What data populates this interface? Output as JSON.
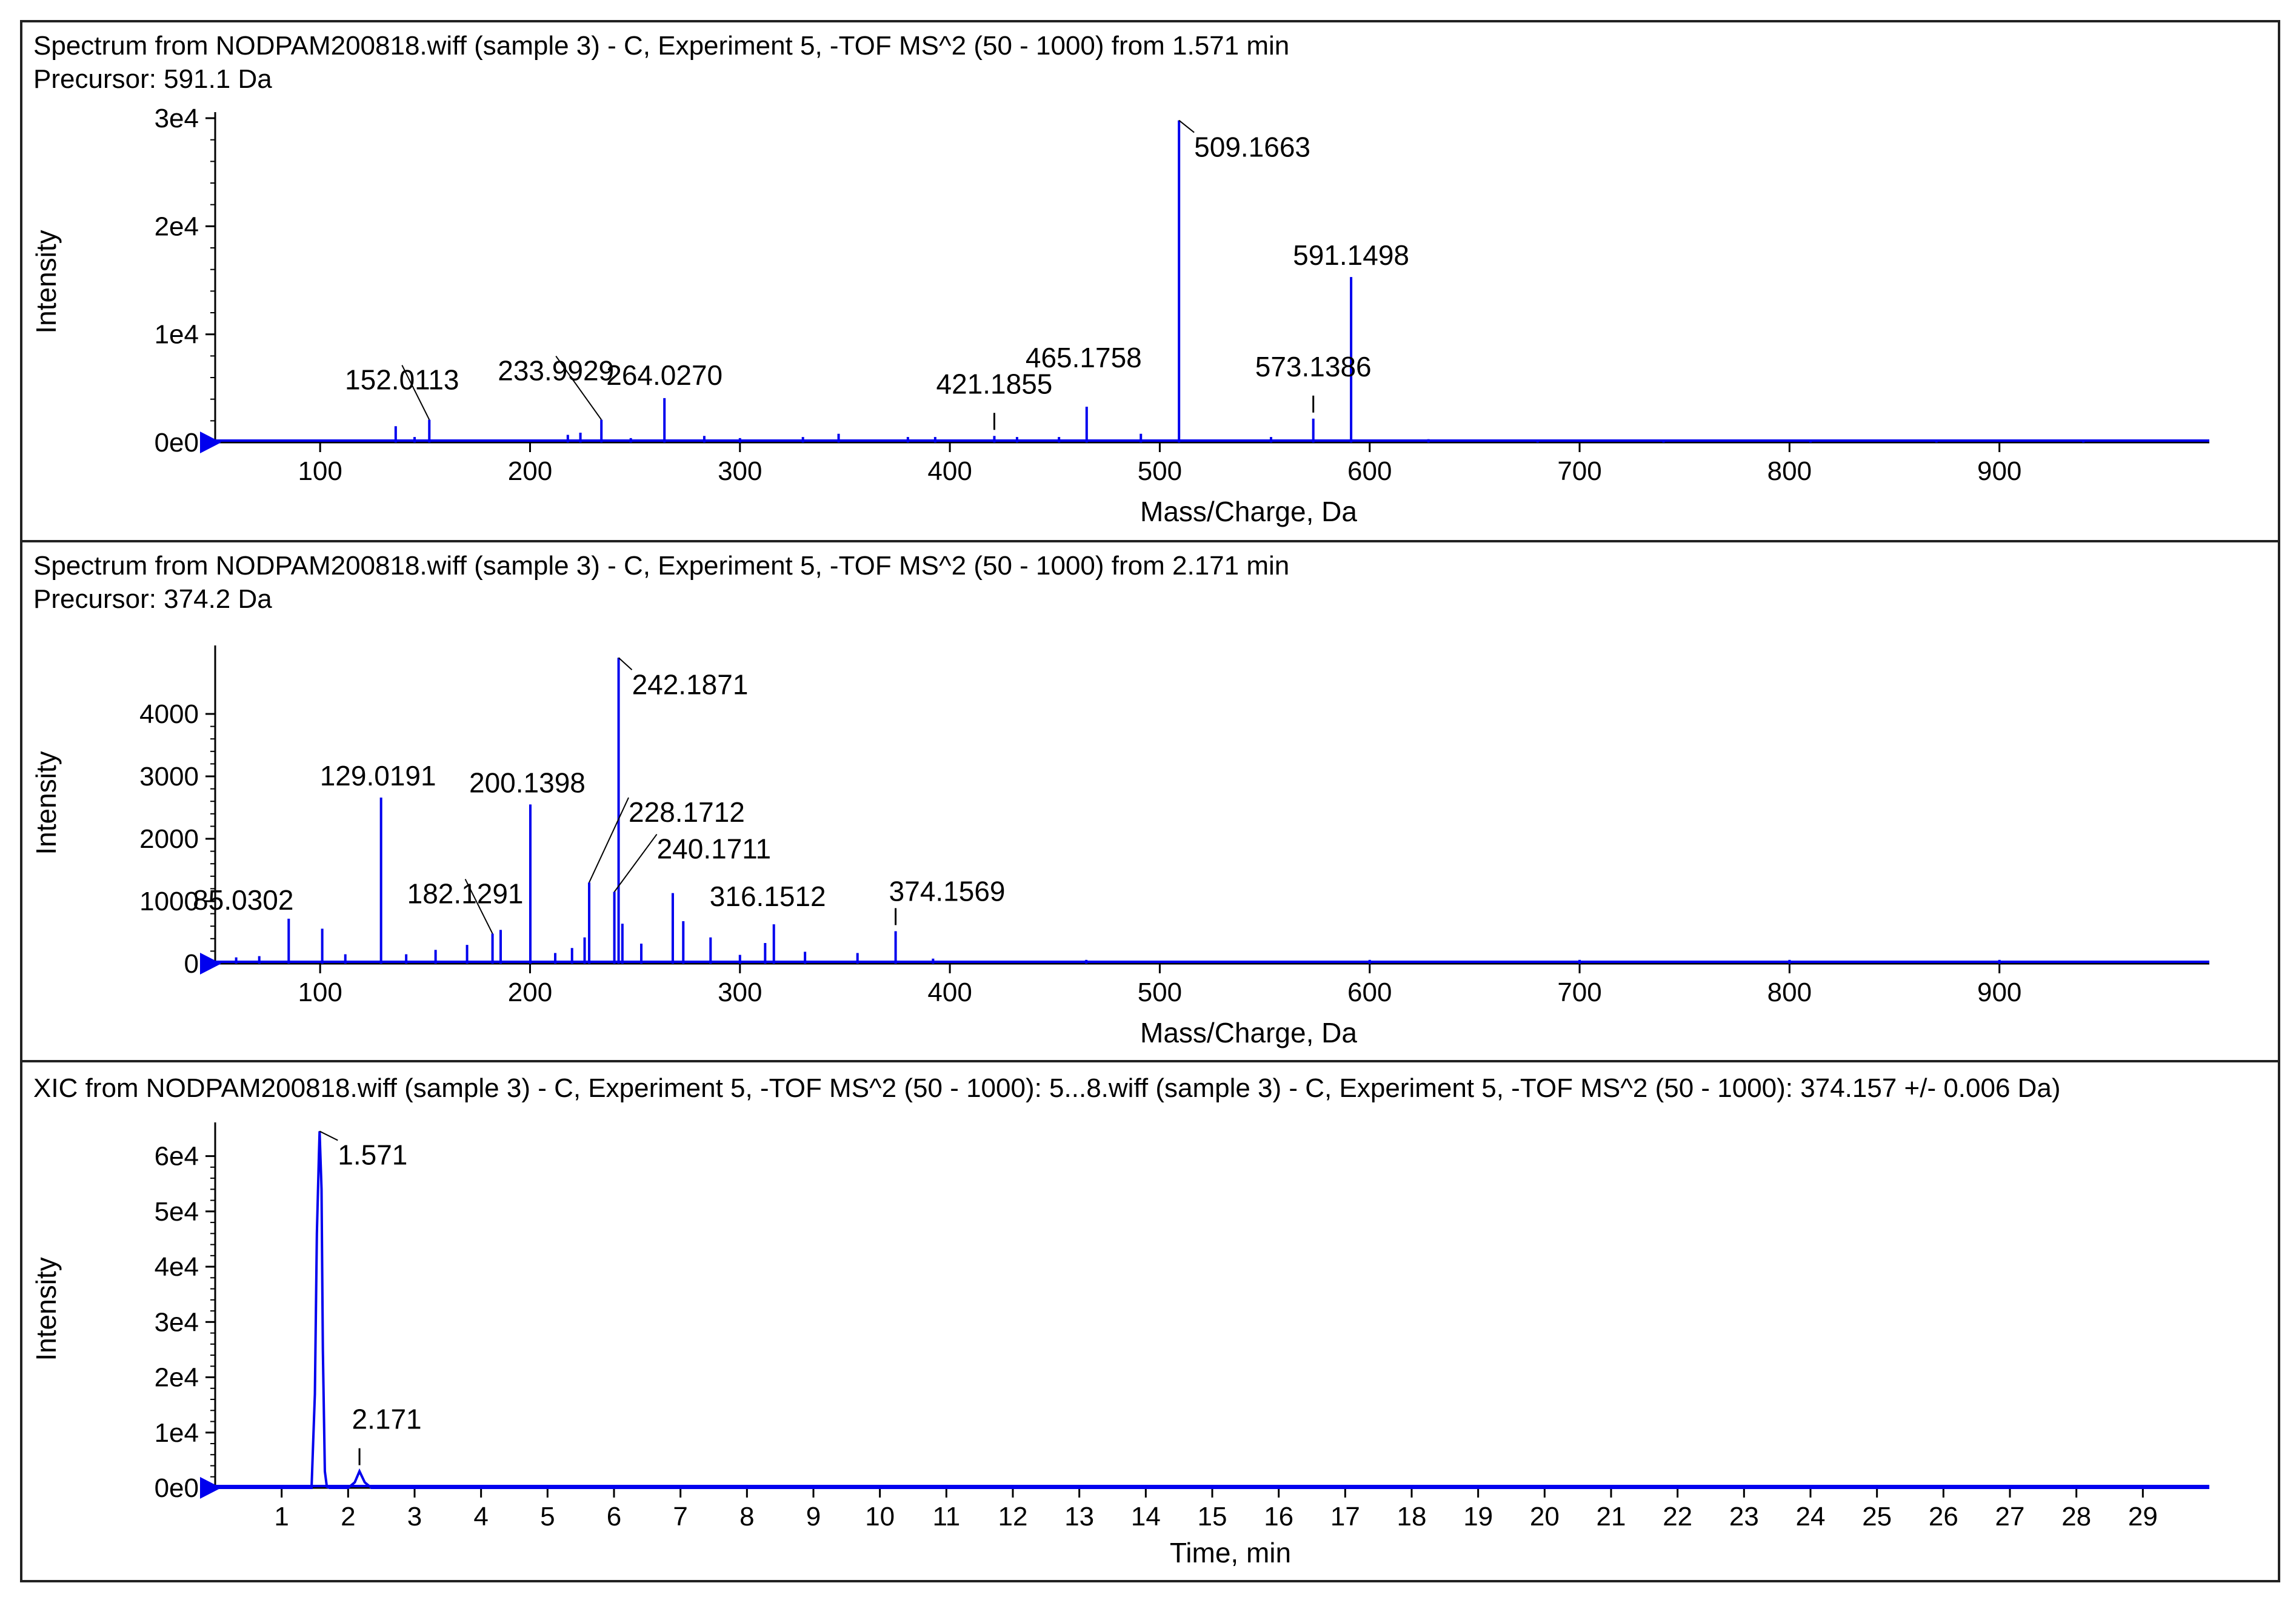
{
  "chart_data": [
    {
      "type": "line",
      "subtype": "mass-spectrum-stick",
      "title": "Spectrum from NODPAM200818.wiff (sample 3) - C, Experiment 5, -TOF MS^2 (50 - 1000) from 1.571 min",
      "subtitle": "Precursor: 591.1 Da",
      "xlabel": "Mass/Charge, Da",
      "ylabel": "Intensity",
      "xlim": [
        50,
        1000
      ],
      "ylim": [
        0,
        30000
      ],
      "x_ticks": [
        100,
        200,
        300,
        400,
        500,
        600,
        700,
        800,
        900
      ],
      "y_ticks": [
        {
          "value": 0,
          "label": "0e0"
        },
        {
          "value": 10000,
          "label": "1e4"
        },
        {
          "value": 20000,
          "label": "2e4"
        },
        {
          "value": 30000,
          "label": "3e4"
        }
      ],
      "peaks": [
        {
          "x": 136,
          "y": 1500
        },
        {
          "x": 152.0113,
          "y": 2100
        },
        {
          "x": 145,
          "y": 500
        },
        {
          "x": 218,
          "y": 700
        },
        {
          "x": 224,
          "y": 900
        },
        {
          "x": 233.9929,
          "y": 2100
        },
        {
          "x": 248,
          "y": 400
        },
        {
          "x": 264.027,
          "y": 4100
        },
        {
          "x": 283,
          "y": 600
        },
        {
          "x": 300,
          "y": 400
        },
        {
          "x": 330,
          "y": 500
        },
        {
          "x": 347,
          "y": 800
        },
        {
          "x": 380,
          "y": 500
        },
        {
          "x": 393,
          "y": 500
        },
        {
          "x": 421.1855,
          "y": 600
        },
        {
          "x": 432,
          "y": 500
        },
        {
          "x": 452,
          "y": 500
        },
        {
          "x": 465.1758,
          "y": 3300
        },
        {
          "x": 491,
          "y": 800
        },
        {
          "x": 509.1663,
          "y": 29800
        },
        {
          "x": 553,
          "y": 500
        },
        {
          "x": 573.1386,
          "y": 2200
        },
        {
          "x": 591.1498,
          "y": 15300
        },
        {
          "x": 628,
          "y": 300
        },
        {
          "x": 680,
          "y": 200
        },
        {
          "x": 740,
          "y": 200
        },
        {
          "x": 810,
          "y": 200
        },
        {
          "x": 870,
          "y": 200
        },
        {
          "x": 940,
          "y": 200
        }
      ],
      "annotations": [
        {
          "x": 509.1663,
          "label": "509.1663"
        },
        {
          "x": 591.1498,
          "label": "591.1498"
        },
        {
          "x": 233.9929,
          "label": "233.9929"
        },
        {
          "x": 264.027,
          "label": "264.0270"
        },
        {
          "x": 152.0113,
          "label": "152.0113"
        },
        {
          "x": 421.1855,
          "label": "421.1855"
        },
        {
          "x": 465.1758,
          "label": "465.1758"
        },
        {
          "x": 573.1386,
          "label": "573.1386"
        }
      ]
    },
    {
      "type": "line",
      "subtype": "mass-spectrum-stick",
      "title": "Spectrum from NODPAM200818.wiff (sample 3) - C, Experiment 5, -TOF MS^2 (50 - 1000) from 2.171 min",
      "subtitle": "Precursor: 374.2 Da",
      "xlabel": "Mass/Charge, Da",
      "ylabel": "Intensity",
      "xlim": [
        50,
        1000
      ],
      "ylim": [
        0,
        5000
      ],
      "x_ticks": [
        100,
        200,
        300,
        400,
        500,
        600,
        700,
        800,
        900
      ],
      "y_ticks": [
        {
          "value": 0,
          "label": "0"
        },
        {
          "value": 1000,
          "label": "1000"
        },
        {
          "value": 2000,
          "label": "2000"
        },
        {
          "value": 3000,
          "label": "3000"
        },
        {
          "value": 4000,
          "label": "4000"
        }
      ],
      "peaks": [
        {
          "x": 60,
          "y": 100
        },
        {
          "x": 71,
          "y": 120
        },
        {
          "x": 85.0302,
          "y": 720
        },
        {
          "x": 101,
          "y": 560
        },
        {
          "x": 112,
          "y": 150
        },
        {
          "x": 129.0191,
          "y": 2660
        },
        {
          "x": 141,
          "y": 150
        },
        {
          "x": 155,
          "y": 220
        },
        {
          "x": 170,
          "y": 300
        },
        {
          "x": 182.1291,
          "y": 480
        },
        {
          "x": 186,
          "y": 540
        },
        {
          "x": 200.1398,
          "y": 2550
        },
        {
          "x": 212,
          "y": 170
        },
        {
          "x": 220,
          "y": 250
        },
        {
          "x": 226,
          "y": 420
        },
        {
          "x": 228.1712,
          "y": 1300
        },
        {
          "x": 240.1711,
          "y": 1150
        },
        {
          "x": 242.1871,
          "y": 4900
        },
        {
          "x": 244,
          "y": 640
        },
        {
          "x": 253,
          "y": 320
        },
        {
          "x": 268,
          "y": 1130
        },
        {
          "x": 273,
          "y": 680
        },
        {
          "x": 286,
          "y": 420
        },
        {
          "x": 300,
          "y": 140
        },
        {
          "x": 312,
          "y": 330
        },
        {
          "x": 316.1512,
          "y": 630
        },
        {
          "x": 331,
          "y": 190
        },
        {
          "x": 356,
          "y": 170
        },
        {
          "x": 374.1569,
          "y": 520
        },
        {
          "x": 392,
          "y": 80
        },
        {
          "x": 465,
          "y": 60
        },
        {
          "x": 600,
          "y": 60
        },
        {
          "x": 700,
          "y": 60
        },
        {
          "x": 800,
          "y": 60
        },
        {
          "x": 900,
          "y": 60
        }
      ],
      "annotations": [
        {
          "x": 242.1871,
          "label": "242.1871"
        },
        {
          "x": 129.0191,
          "label": "129.0191"
        },
        {
          "x": 200.1398,
          "label": "200.1398"
        },
        {
          "x": 228.1712,
          "label": "228.1712"
        },
        {
          "x": 240.1711,
          "label": "240.1711"
        },
        {
          "x": 182.1291,
          "label": "182.1291"
        },
        {
          "x": 85.0302,
          "label": "85.0302"
        },
        {
          "x": 316.1512,
          "label": "316.1512"
        },
        {
          "x": 374.1569,
          "label": "374.1569"
        }
      ]
    },
    {
      "type": "line",
      "subtype": "extracted-ion-chromatogram",
      "title": "XIC from NODPAM200818.wiff (sample 3) - C, Experiment 5, -TOF MS^2 (50 - 1000): 5...8.wiff (sample 3) - C, Experiment 5, -TOF MS^2 (50 - 1000): 374.157 +/- 0.006 Da)",
      "subtitle": "",
      "xlabel": "Time, min",
      "ylabel": "Intensity",
      "xlim": [
        0,
        30
      ],
      "ylim": [
        0,
        65000
      ],
      "x_ticks": [
        1,
        2,
        3,
        4,
        5,
        6,
        7,
        8,
        9,
        10,
        11,
        12,
        13,
        14,
        15,
        16,
        17,
        18,
        19,
        20,
        21,
        22,
        23,
        24,
        25,
        26,
        27,
        28,
        29
      ],
      "y_ticks": [
        {
          "value": 0,
          "label": "0e0"
        },
        {
          "value": 10000,
          "label": "1e4"
        },
        {
          "value": 20000,
          "label": "2e4"
        },
        {
          "value": 30000,
          "label": "3e4"
        },
        {
          "value": 40000,
          "label": "4e4"
        },
        {
          "value": 50000,
          "label": "5e4"
        },
        {
          "value": 60000,
          "label": "6e4"
        }
      ],
      "series": [
        {
          "name": "XIC 374.157",
          "x": [
            0,
            1.45,
            1.5,
            1.53,
            1.56,
            1.571,
            1.6,
            1.62,
            1.65,
            1.68,
            1.72,
            2.0,
            2.1,
            2.171,
            2.25,
            2.35,
            30
          ],
          "y": [
            0,
            0,
            17000,
            46000,
            60000,
            64500,
            54000,
            25000,
            3000,
            200,
            0,
            0,
            1000,
            3000,
            1000,
            0,
            0
          ]
        }
      ],
      "annotations": [
        {
          "x": 1.571,
          "label": "1.571"
        },
        {
          "x": 2.171,
          "label": "2.171"
        }
      ]
    }
  ]
}
